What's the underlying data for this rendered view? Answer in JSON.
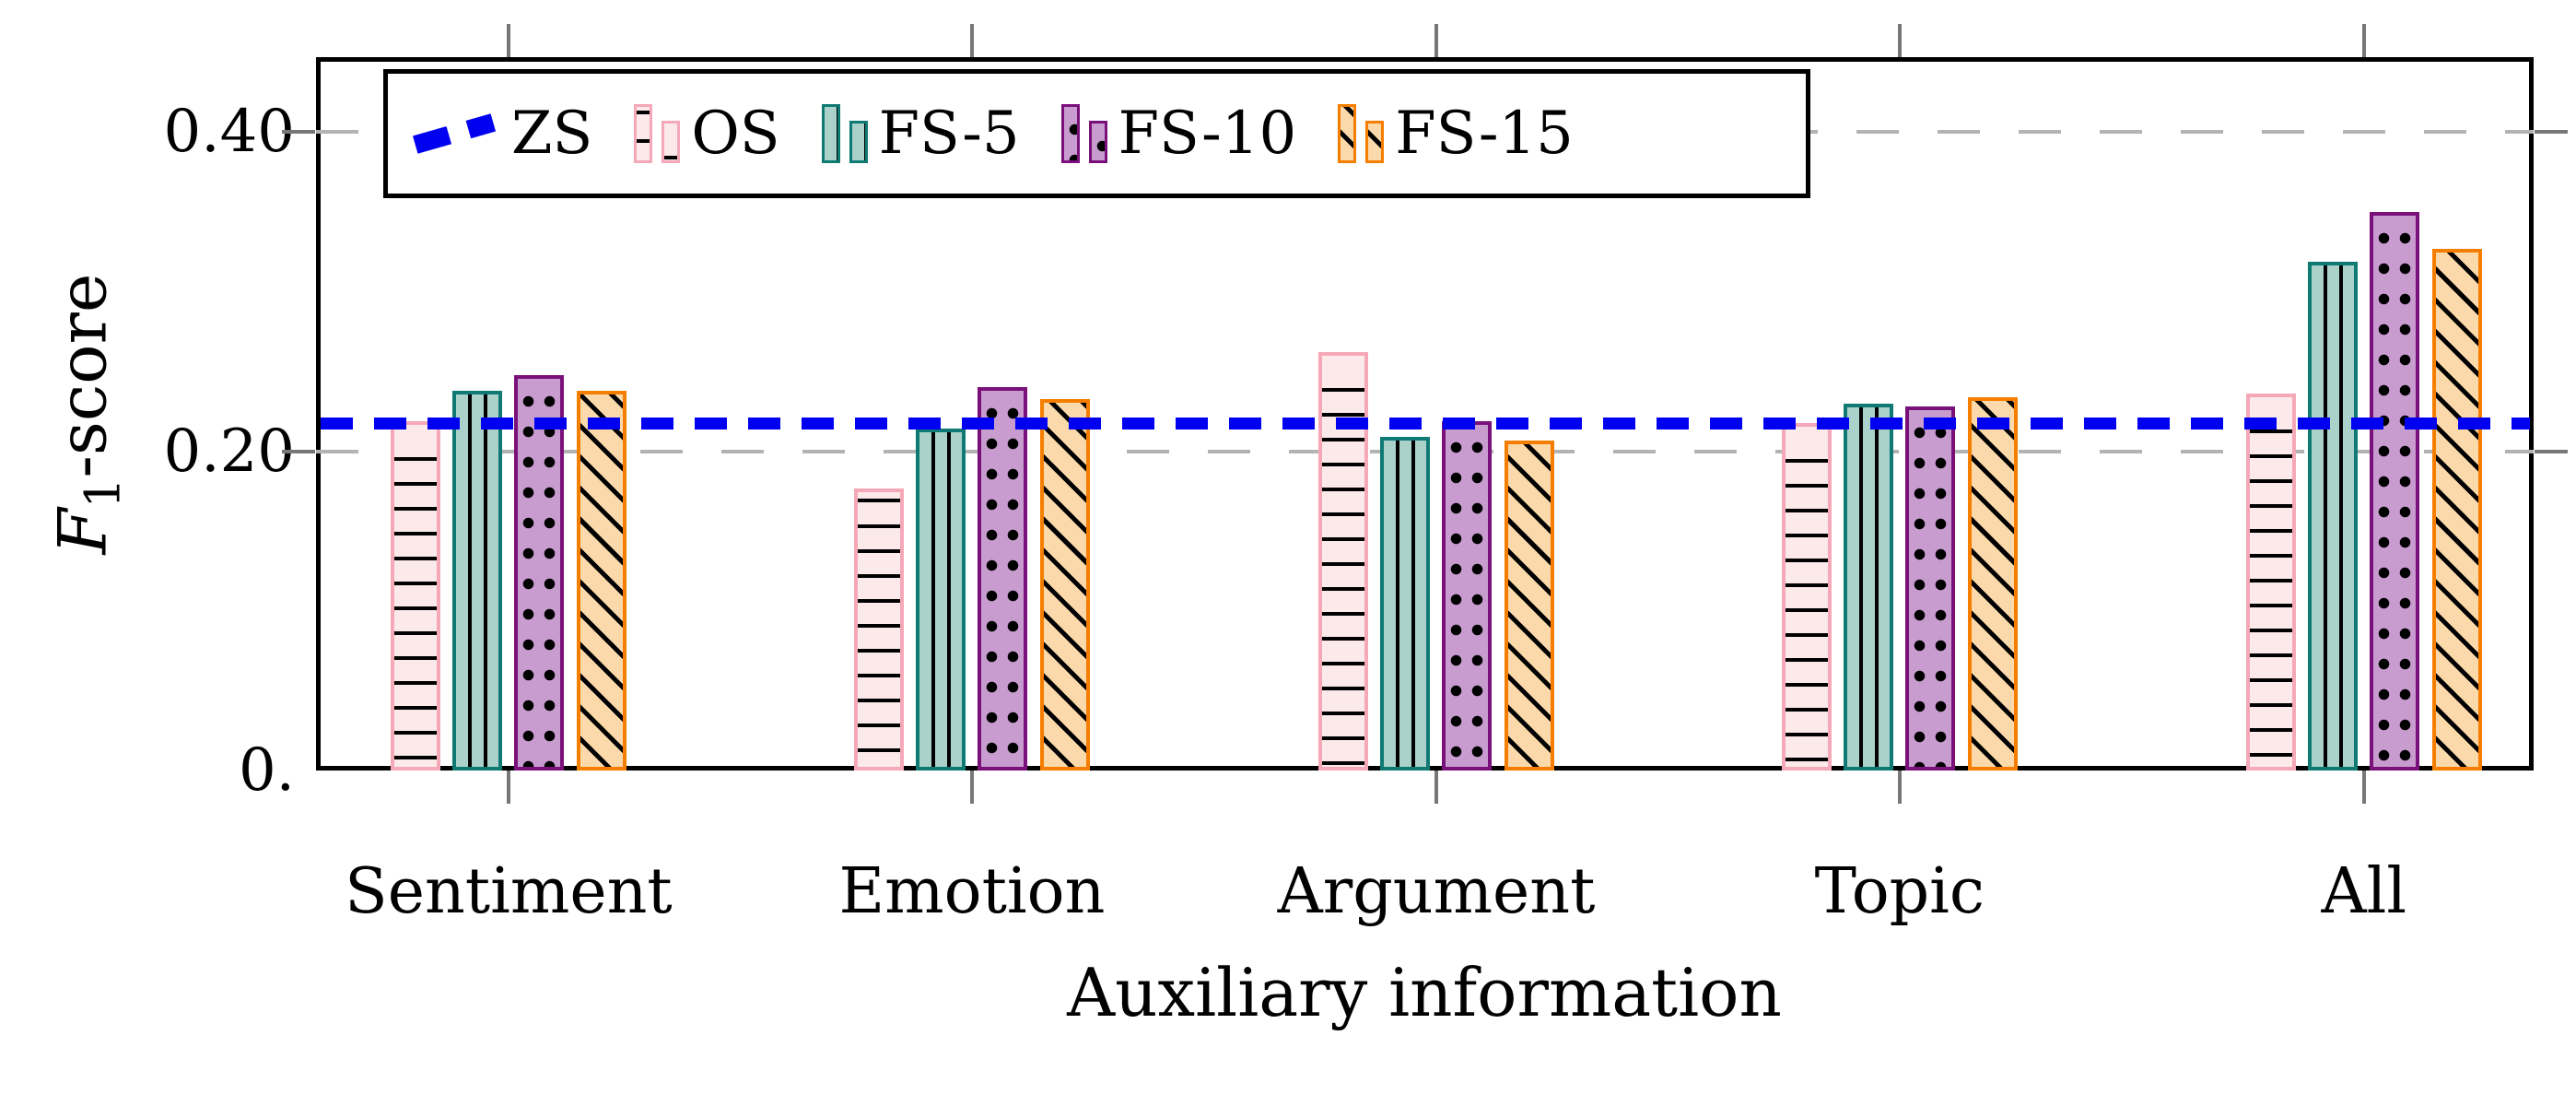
{
  "labels": {
    "ylabel_f": "F",
    "ylabel_sub": "1",
    "ylabel_rest": "-score"
  },
  "chart_data": {
    "type": "bar",
    "title": "",
    "xlabel": "Auxiliary information",
    "ylabel": "F1-score",
    "categories": [
      "Sentiment",
      "Emotion",
      "Argument",
      "Topic",
      "All"
    ],
    "series": [
      {
        "name": "OS",
        "values": [
          0.219,
          0.177,
          0.262,
          0.218,
          0.236
        ],
        "fill": "#fce9e9",
        "border": "#f5a8b8",
        "pattern": "hlines"
      },
      {
        "name": "FS-5",
        "values": [
          0.238,
          0.214,
          0.209,
          0.23,
          0.319
        ],
        "fill": "#abd1cb",
        "border": "#0e7a73",
        "pattern": "vlines"
      },
      {
        "name": "FS-10",
        "values": [
          0.248,
          0.24,
          0.219,
          0.228,
          0.35
        ],
        "fill": "#c89ccf",
        "border": "#7a117b",
        "pattern": "dots"
      },
      {
        "name": "FS-15",
        "values": [
          0.238,
          0.233,
          0.207,
          0.234,
          0.327
        ],
        "fill": "#fbd9ab",
        "border": "#f57e00",
        "pattern": "diag"
      }
    ],
    "reference_line": {
      "name": "ZS",
      "value": 0.218,
      "color": "#0000f0",
      "style": "dashed"
    },
    "yticks": [
      {
        "label": "0.",
        "value": 0.0
      },
      {
        "label": "0.20",
        "value": 0.2
      },
      {
        "label": "0.40",
        "value": 0.4
      }
    ],
    "ylim": [
      0,
      0.447
    ],
    "grid": "dashed gray horizontal lines at 0.20 and 0.40",
    "legend_position": "top-left inside plot",
    "legend_entries": [
      "ZS",
      "OS",
      "FS-5",
      "FS-10",
      "FS-15"
    ]
  }
}
